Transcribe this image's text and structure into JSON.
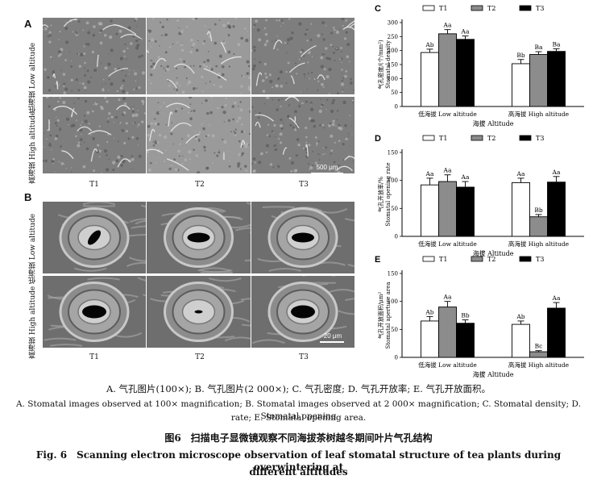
{
  "figure": {
    "panelA_label": "A",
    "panelB_label": "B",
    "row_low": "低海拔 Low altitude",
    "row_high": "高海拔 High altitude",
    "col_labels": [
      "T1",
      "T2",
      "T3"
    ],
    "scalebar_A": "500 μm",
    "scalebar_B": "20 μm"
  },
  "chart_data": [
    {
      "panel": "C",
      "type": "bar",
      "legend": [
        "T1",
        "T2",
        "T3"
      ],
      "categories": [
        "低海拔 Low altitude",
        "高海拔 High altitude"
      ],
      "xlabel": "海拔 Altitude",
      "ylabel_cn": "气孔密度/(个/mm²)",
      "ylabel_en": "Stomatal density",
      "ylim": [
        0,
        300
      ],
      "yticks": [
        0,
        50,
        100,
        150,
        200,
        250,
        300
      ],
      "series": [
        {
          "name": "T1",
          "values": [
            193,
            153
          ],
          "errors": [
            12,
            15
          ],
          "letters": [
            "Ab",
            "Bb"
          ]
        },
        {
          "name": "T2",
          "values": [
            260,
            186
          ],
          "errors": [
            15,
            10
          ],
          "letters": [
            "Aa",
            "Ba"
          ]
        },
        {
          "name": "T3",
          "values": [
            240,
            197
          ],
          "errors": [
            12,
            9
          ],
          "letters": [
            "Aa",
            "Ba"
          ]
        }
      ],
      "colors": [
        "#ffffff",
        "#8c8c8c",
        "#000000"
      ]
    },
    {
      "panel": "D",
      "type": "bar",
      "legend": [
        "T1",
        "T2",
        "T3"
      ],
      "categories": [
        "低海拔 Low altitude",
        "高海拔 High altitude"
      ],
      "xlabel": "海拔 Altitude",
      "ylabel_cn": "气孔开放率/%",
      "ylabel_en": "Stomatal opening rate",
      "ylim": [
        0,
        150
      ],
      "yticks": [
        0,
        50,
        100,
        150
      ],
      "series": [
        {
          "name": "T1",
          "values": [
            92,
            96
          ],
          "errors": [
            12,
            8
          ],
          "letters": [
            "Aa",
            "Aa"
          ]
        },
        {
          "name": "T2",
          "values": [
            98,
            35
          ],
          "errors": [
            12,
            4
          ],
          "letters": [
            "Aa",
            "Bb"
          ]
        },
        {
          "name": "T3",
          "values": [
            88,
            97
          ],
          "errors": [
            10,
            10
          ],
          "letters": [
            "Aa",
            "Aa"
          ]
        }
      ],
      "colors": [
        "#ffffff",
        "#8c8c8c",
        "#000000"
      ]
    },
    {
      "panel": "E",
      "type": "bar",
      "legend": [
        "T1",
        "T2",
        "T3"
      ],
      "categories": [
        "低海拔 Low altitude",
        "高海拔 High altitude"
      ],
      "xlabel": "海拔 Altitude",
      "ylabel_cn": "气孔开放面积/μm²",
      "ylabel_en": "Stomatal aperture area",
      "ylim": [
        0,
        150
      ],
      "yticks": [
        0,
        50,
        100,
        150
      ],
      "series": [
        {
          "name": "T1",
          "values": [
            65,
            59
          ],
          "errors": [
            8,
            6
          ],
          "letters": [
            "Ab",
            "Ab"
          ]
        },
        {
          "name": "T2",
          "values": [
            90,
            10
          ],
          "errors": [
            10,
            2
          ],
          "letters": [
            "Aa",
            "Bc"
          ]
        },
        {
          "name": "T3",
          "values": [
            61,
            88
          ],
          "errors": [
            6,
            10
          ],
          "letters": [
            "Bb",
            "Aa"
          ]
        }
      ],
      "colors": [
        "#ffffff",
        "#8c8c8c",
        "#000000"
      ]
    }
  ],
  "captions": {
    "cn_sub": "A. 气孔图片(100×); B. 气孔图片(2 000×); C. 气孔密度; D. 气孔开放率; E. 气孔开放面积。",
    "en_sub_1": "A. Stomatal images observed at 100× magnification; B. Stomatal images observed at 2 000× magnification; C. Stomatal density; D. Stomatal opening",
    "en_sub_2": "rate; E. Stomatal opening area.",
    "cn_title": "图6　扫描电子显微镜观察不同海拔茶树越冬期间叶片气孔结构",
    "en_title_1": "Fig. 6　Scanning electron microscope observation of leaf stomatal structure of tea plants during overwintering at",
    "en_title_2": "different altitudes"
  }
}
